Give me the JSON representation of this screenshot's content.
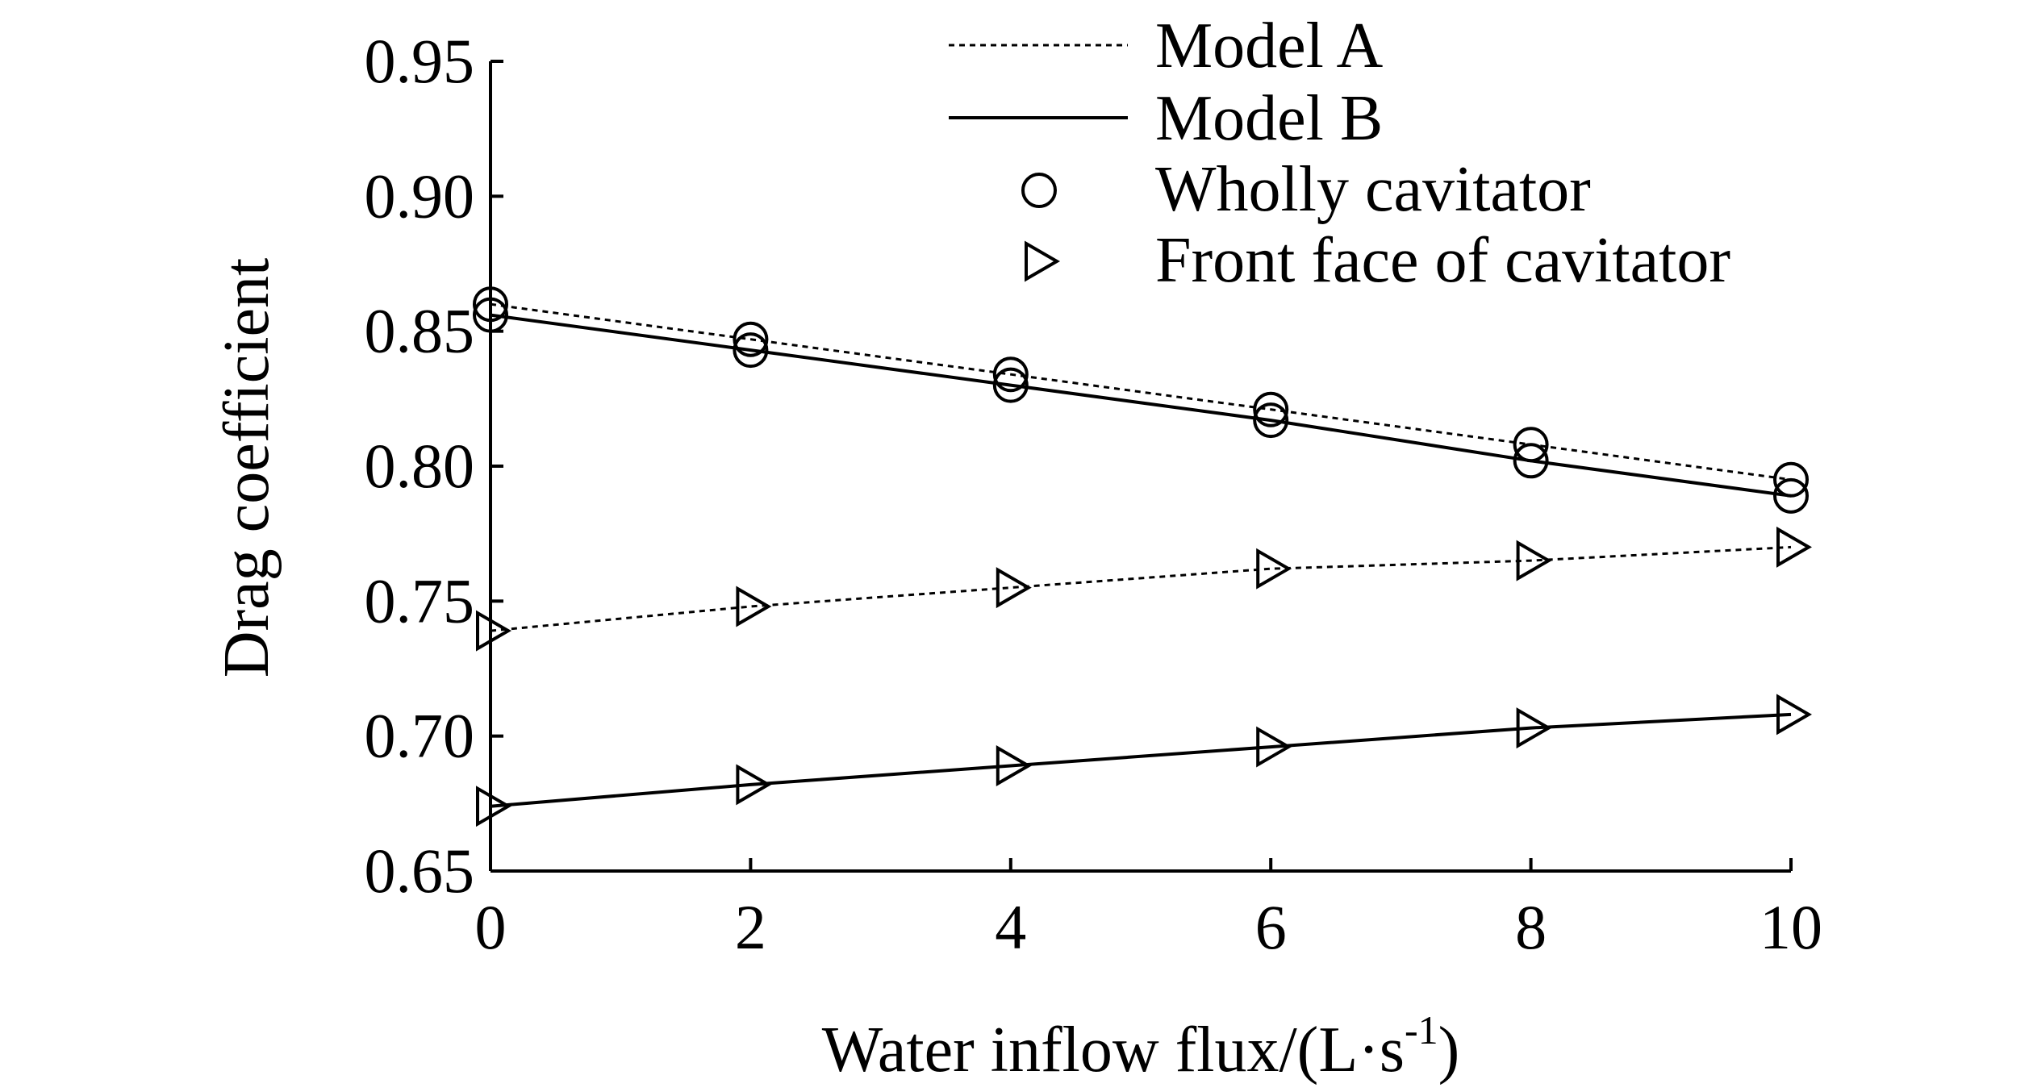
{
  "chart_data": {
    "type": "line",
    "xlabel": "Water inflow flux/(L·s",
    "xlabel_superscript": "-1",
    "xlabel_suffix": ")",
    "ylabel": "Drag coefficient",
    "xlim": [
      0,
      10
    ],
    "ylim": [
      0.65,
      0.95
    ],
    "x_ticks": [
      0,
      2,
      4,
      6,
      8,
      10
    ],
    "x_tick_labels": [
      "0",
      "2",
      "4",
      "6",
      "8",
      "10"
    ],
    "y_ticks": [
      0.65,
      0.7,
      0.75,
      0.8,
      0.85,
      0.9,
      0.95
    ],
    "y_tick_labels": [
      "0.65",
      "0.70",
      "0.75",
      "0.80",
      "0.85",
      "0.90",
      "0.95"
    ],
    "grid": false,
    "legend_position": "top-right",
    "legend": [
      {
        "label": "Model A",
        "kind": "line",
        "style": "dotted"
      },
      {
        "label": "Model B",
        "kind": "line",
        "style": "solid"
      },
      {
        "label": "Wholly cavitator",
        "kind": "marker",
        "marker": "circle"
      },
      {
        "label": "Front face of cavitator",
        "kind": "marker",
        "marker": "triangle-right"
      }
    ],
    "x": [
      0,
      2,
      4,
      6,
      8,
      10
    ],
    "series": [
      {
        "model": "Model A",
        "marker": "circle",
        "line_style": "dotted",
        "values": [
          0.86,
          0.847,
          0.834,
          0.821,
          0.808,
          0.795
        ]
      },
      {
        "model": "Model B",
        "marker": "circle",
        "line_style": "solid",
        "values": [
          0.856,
          0.843,
          0.83,
          0.817,
          0.802,
          0.789
        ]
      },
      {
        "model": "Model A",
        "marker": "triangle-right",
        "line_style": "dotted",
        "values": [
          0.739,
          0.748,
          0.755,
          0.762,
          0.765,
          0.77
        ]
      },
      {
        "model": "Model B",
        "marker": "triangle-right",
        "line_style": "solid",
        "values": [
          0.674,
          0.682,
          0.689,
          0.696,
          0.703,
          0.708
        ]
      }
    ]
  }
}
